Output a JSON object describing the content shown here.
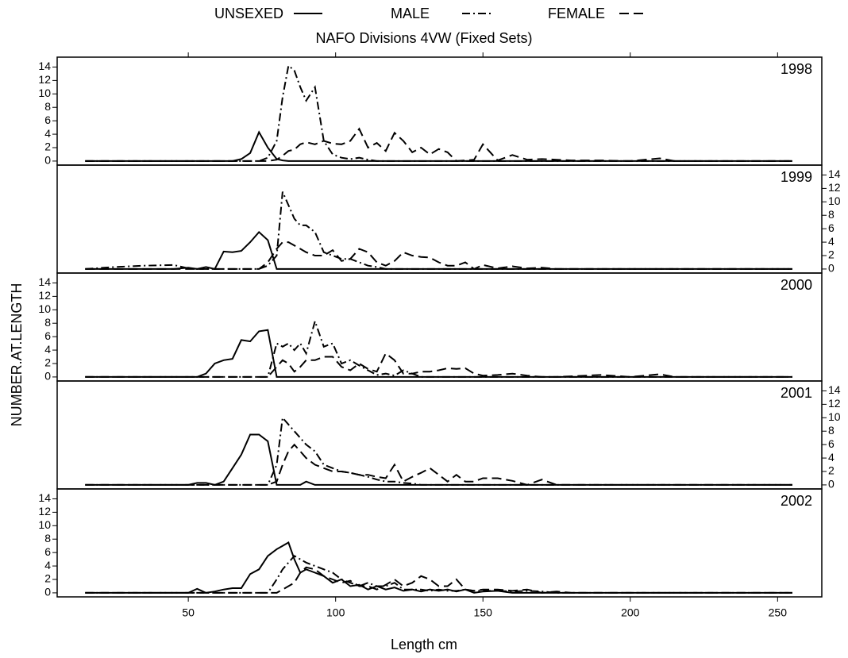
{
  "chart_data": {
    "type": "line",
    "title": "NAFO Divisions 4VW (Fixed Sets)",
    "x_label": "Length cm",
    "y_label": "NUMBER.AT.LENGTH",
    "xlim": [
      5.5,
      265
    ],
    "xticks": [
      50,
      100,
      150,
      200,
      250
    ],
    "ylim": [
      -0.6,
      15
    ],
    "yticks": [
      0,
      2,
      4,
      6,
      8,
      10,
      12,
      14
    ],
    "series": [
      {
        "name": "UNSEXED",
        "color": "#000000",
        "dash": "solid"
      },
      {
        "name": "MALE",
        "color": "#000000",
        "dash": "dashdot"
      },
      {
        "name": "FEMALE",
        "color": "#000000",
        "dash": "dash"
      }
    ],
    "x": [
      15,
      25,
      35,
      45,
      50,
      53,
      56,
      59,
      62,
      65,
      68,
      71,
      74,
      77,
      80,
      82,
      84,
      86,
      88,
      90,
      93,
      96,
      99,
      102,
      105,
      108,
      111,
      114,
      117,
      120,
      123,
      126,
      129,
      132,
      135,
      138,
      141,
      144,
      147,
      150,
      155,
      160,
      165,
      170,
      175,
      180,
      190,
      200,
      210,
      215,
      230,
      255
    ],
    "panels": [
      {
        "label": "1998",
        "values": [
          [
            0,
            0,
            0,
            0,
            0,
            0,
            0,
            0,
            0,
            0,
            0.3,
            1.2,
            4.3,
            2,
            0.3,
            0.1,
            0,
            0,
            0,
            0,
            0,
            0,
            0,
            0,
            0,
            0,
            0,
            0,
            0,
            0,
            0,
            0,
            0,
            0,
            0,
            0,
            0,
            0,
            0,
            0,
            0,
            0,
            0,
            0,
            0,
            0,
            0,
            0,
            0,
            0,
            0,
            0
          ],
          [
            0,
            0,
            0,
            0,
            0,
            0,
            0,
            0,
            0,
            0,
            0,
            0,
            0,
            0.5,
            3,
            9.5,
            14.2,
            13.5,
            11,
            9,
            11,
            3,
            1,
            0.5,
            0.3,
            0.5,
            0.2,
            0,
            0,
            0,
            0,
            0,
            0,
            0,
            0,
            0,
            0,
            0,
            0,
            0,
            0,
            0,
            0,
            0,
            0,
            0,
            0,
            0,
            0,
            0,
            0,
            0
          ],
          [
            0,
            0,
            0,
            0,
            0,
            0,
            0,
            0,
            0,
            0,
            0,
            0,
            0,
            0,
            0.2,
            0.8,
            1.5,
            1.7,
            2.5,
            2.8,
            2.5,
            3,
            2.6,
            2.5,
            3,
            4.8,
            2,
            2.7,
            1.5,
            4.2,
            3,
            1.3,
            2,
            1,
            1.8,
            1.3,
            0,
            0.1,
            0.2,
            2.5,
            0.1,
            0.9,
            0.2,
            0.3,
            0.2,
            0.1,
            0.1,
            0,
            0.4,
            0,
            0,
            0
          ]
        ]
      },
      {
        "label": "1999",
        "values": [
          [
            0,
            0,
            0,
            0,
            0.2,
            0,
            0.3,
            0,
            2.6,
            2.5,
            2.7,
            4,
            5.5,
            4.3,
            0,
            0,
            0,
            0,
            0,
            0,
            0,
            0,
            0,
            0,
            0,
            0,
            0,
            0,
            0,
            0,
            0,
            0,
            0,
            0,
            0,
            0,
            0,
            0,
            0,
            0,
            0,
            0,
            0,
            0,
            0,
            0,
            0,
            0,
            0,
            0,
            0,
            0
          ],
          [
            0,
            0.3,
            0.5,
            0.6,
            0.1,
            0,
            0,
            0,
            0,
            0,
            0,
            0,
            0,
            0.5,
            2,
            11.5,
            9.5,
            7.5,
            6.5,
            6.5,
            5.5,
            2.5,
            2,
            1.5,
            1.5,
            1,
            0.5,
            0.3,
            0,
            0,
            0,
            0,
            0,
            0,
            0,
            0,
            0,
            0,
            0,
            0,
            0,
            0,
            0,
            0,
            0,
            0,
            0,
            0,
            0,
            0,
            0,
            0
          ],
          [
            0,
            0,
            0,
            0,
            0,
            0,
            0,
            0,
            0,
            0,
            0,
            0,
            0,
            1,
            3,
            4,
            4,
            3.5,
            3,
            2.5,
            2,
            2,
            2.8,
            1.2,
            1.5,
            3,
            2.5,
            1,
            0.5,
            1.2,
            2.5,
            2,
            1.8,
            1.7,
            1,
            0.5,
            0.5,
            1,
            0,
            0.6,
            0.1,
            0.4,
            0.1,
            0.2,
            0,
            0,
            0,
            0,
            0,
            0,
            0,
            0
          ]
        ]
      },
      {
        "label": "2000",
        "values": [
          [
            0,
            0,
            0,
            0,
            0,
            0,
            0.5,
            2,
            2.5,
            2.7,
            5.5,
            5.3,
            6.8,
            7,
            0,
            0,
            0,
            0,
            0,
            0,
            0,
            0,
            0,
            0,
            0,
            0,
            0,
            0,
            0,
            0,
            0,
            0,
            0,
            0,
            0,
            0,
            0,
            0,
            0,
            0,
            0,
            0,
            0,
            0,
            0,
            0,
            0,
            0,
            0,
            0,
            0,
            0
          ],
          [
            0,
            0,
            0,
            0,
            0,
            0,
            0,
            0,
            0,
            0,
            0,
            0,
            0,
            0,
            5,
            4.5,
            5,
            4,
            5,
            3.5,
            8.3,
            4.5,
            5,
            2,
            2.5,
            1.7,
            1,
            0.3,
            0.5,
            0.2,
            1,
            0.5,
            0,
            0,
            0,
            0,
            0,
            0,
            0,
            0,
            0,
            0,
            0,
            0,
            0,
            0,
            0,
            0,
            0,
            0,
            0,
            0
          ],
          [
            0,
            0,
            0,
            0,
            0,
            0,
            0,
            0,
            0,
            0,
            0,
            0,
            0,
            0,
            1.5,
            2.5,
            2,
            0.8,
            1.5,
            2.5,
            2.5,
            3,
            3,
            1.5,
            1,
            2,
            1.2,
            0.8,
            3.5,
            2.5,
            0.5,
            0.5,
            0.8,
            0.8,
            1,
            1.3,
            1.2,
            1.3,
            0.5,
            0.2,
            0.3,
            0.5,
            0.2,
            0,
            0,
            0.1,
            0.3,
            0,
            0.4,
            0,
            0,
            0
          ]
        ]
      },
      {
        "label": "2001",
        "values": [
          [
            0,
            0,
            0,
            0,
            0,
            0.3,
            0.3,
            0,
            0.5,
            2.5,
            4.5,
            7.5,
            7.5,
            6.5,
            0,
            0,
            0,
            0,
            0,
            0.5,
            0,
            0,
            0,
            0,
            0,
            0,
            0,
            0,
            0,
            0,
            0,
            0,
            0,
            0,
            0,
            0,
            0,
            0,
            0,
            0,
            0,
            0,
            0,
            0,
            0,
            0,
            0,
            0,
            0,
            0,
            0,
            0
          ],
          [
            0,
            0,
            0,
            0,
            0,
            0,
            0,
            0,
            0,
            0,
            0,
            0,
            0,
            0,
            3,
            10,
            9,
            8,
            7,
            6,
            5,
            3,
            2.5,
            2,
            1.8,
            1.5,
            1.2,
            0.8,
            0.5,
            0.5,
            0.3,
            0.2,
            0,
            0,
            0,
            0,
            0,
            0,
            0,
            0,
            0,
            0,
            0,
            0,
            0,
            0,
            0,
            0,
            0,
            0,
            0,
            0
          ],
          [
            0,
            0,
            0,
            0,
            0,
            0,
            0,
            0,
            0,
            0,
            0,
            0,
            0,
            0,
            0.5,
            3,
            5,
            6,
            5,
            4,
            3,
            2.5,
            2,
            2,
            1.8,
            1.5,
            1.5,
            1.2,
            1,
            3,
            0.5,
            1.2,
            1.8,
            2.5,
            1.5,
            0.5,
            1.5,
            0.5,
            0.5,
            1,
            1,
            0.6,
            0,
            0.8,
            0,
            0,
            0,
            0,
            0,
            0,
            0,
            0
          ]
        ]
      },
      {
        "label": "2002",
        "values": [
          [
            0,
            0,
            0,
            0,
            0,
            0.6,
            0,
            0.2,
            0.5,
            0.7,
            0.7,
            2.8,
            3.5,
            5.5,
            6.5,
            7,
            7.5,
            5,
            3,
            3.5,
            3,
            2.5,
            1.5,
            2,
            1,
            1.2,
            0.5,
            1,
            0.5,
            0.8,
            0.3,
            0.5,
            0.2,
            0.5,
            0.3,
            0.5,
            0.2,
            0.5,
            0,
            0.2,
            0.3,
            0,
            0,
            0,
            0,
            0,
            0,
            0,
            0,
            0,
            0,
            0
          ],
          [
            0,
            0,
            0,
            0,
            0,
            0,
            0,
            0,
            0,
            0,
            0,
            0,
            0,
            0,
            2,
            3.5,
            4.5,
            5.5,
            5,
            4.5,
            4,
            3.5,
            3,
            2,
            1.5,
            1,
            1.5,
            1,
            1,
            1.5,
            0.5,
            0.5,
            0.5,
            0.3,
            0.5,
            0.3,
            0.3,
            0.5,
            0.3,
            0.3,
            0.3,
            0.2,
            0.3,
            0.2,
            0,
            0,
            0,
            0,
            0,
            0,
            0,
            0
          ],
          [
            0,
            0,
            0,
            0,
            0,
            0,
            0,
            0,
            0,
            0,
            0,
            0,
            0,
            0,
            0,
            0.5,
            1,
            1.5,
            3,
            3.8,
            3.5,
            2.5,
            2,
            1.5,
            1.8,
            1,
            1,
            0.5,
            1.2,
            2,
            1,
            1.5,
            2.5,
            2,
            1,
            1,
            2,
            0.5,
            0.3,
            0.5,
            0.5,
            0.3,
            0.5,
            0,
            0.2,
            0,
            0,
            0,
            0,
            0,
            0,
            0
          ]
        ]
      }
    ]
  }
}
